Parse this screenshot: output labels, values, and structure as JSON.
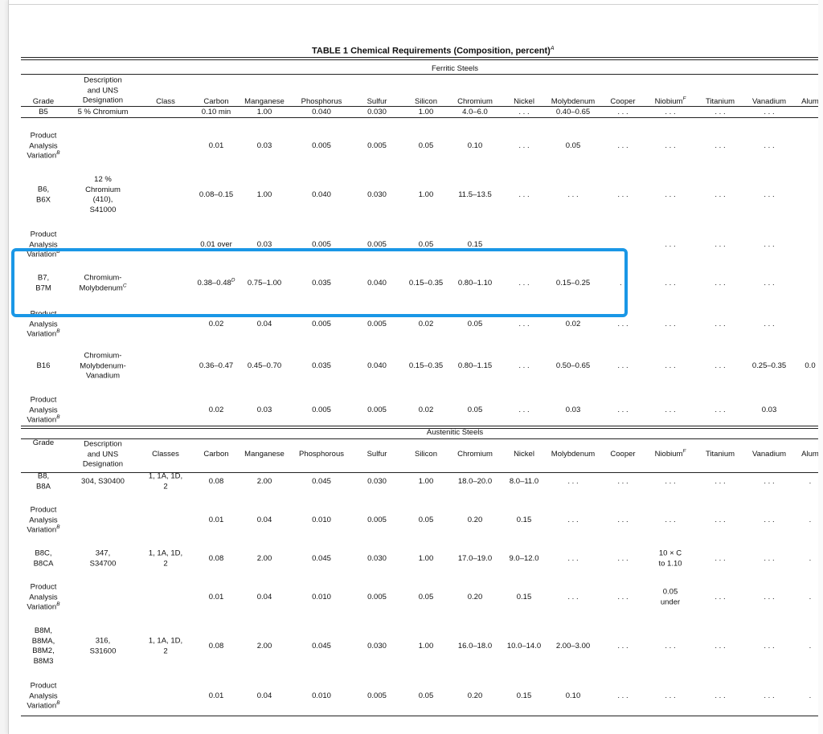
{
  "table": {
    "title": "TABLE 1 Chemical Requirements (Composition, percent)",
    "title_note": "A",
    "ferritic_label": "Ferritic Steels",
    "austenitic_label": "Austenitic Steels",
    "header_ferritic": [
      "Grade",
      "Description\nand UNS\nDesignation",
      "Class",
      "Carbon",
      "Manganese",
      "Phosphorus",
      "Sulfur",
      "Silicon",
      "Chromium",
      "Nickel",
      "Molybdenum",
      "Cooper",
      "Niobium",
      "Titanium",
      "Vanadium",
      "Alum"
    ],
    "header_austenitic": [
      "Grade",
      "Description\nand UNS\nDesignation",
      "Classes",
      "Carbon",
      "Manganese",
      "Phosphorous",
      "Sulfur",
      "Silicon",
      "Chromium",
      "Nickel",
      "Molybdenum",
      "Cooper",
      "Niobium",
      "Titanium",
      "Vanadium",
      "Alum"
    ],
    "niobium_note": "F",
    "variation_note": "B",
    "rows": [
      {
        "grade": "B5",
        "desc": "5 % Chromium",
        "cls": "",
        "values": [
          "0.10 min",
          "1.00",
          "0.040",
          "0.030",
          "1.00",
          "4.0–6.0",
          ". . .",
          "0.40–0.65",
          ". . .",
          ". . .",
          ". . .",
          ". . .",
          ""
        ]
      },
      {
        "grade": "Product\nAnalysis\nVariation",
        "desc": "",
        "cls": "",
        "values": [
          "0.01",
          "0.03",
          "0.005",
          "0.005",
          "0.05",
          "0.10",
          ". . .",
          "0.05",
          ". . .",
          ". . .",
          ". . .",
          ". . .",
          ""
        ]
      },
      {
        "grade": "B6,\nB6X",
        "desc": "12 %\nChromium\n(410),\nS41000",
        "cls": "",
        "values": [
          "0.08–0.15",
          "1.00",
          "0.040",
          "0.030",
          "1.00",
          "11.5–13.5",
          ". . .",
          ". . .",
          ". . .",
          ". . .",
          ". . .",
          ". . .",
          ""
        ]
      },
      {
        "grade": "Product\nAnalysis\nVariation",
        "desc": "",
        "cls": "",
        "values": [
          "0.01 over",
          "0.03",
          "0.005",
          "0.005",
          "0.05",
          "0.15",
          "",
          "",
          "",
          ". . .",
          ". . .",
          ". . .",
          ""
        ]
      },
      {
        "grade": "B7,\nB7M",
        "desc": "Chromium-\nMolybdenum",
        "desc_note": "C",
        "carbon_note": "D",
        "cls": "",
        "values": [
          "0.38–0.48",
          "0.75–1.00",
          "0.035",
          "0.040",
          "0.15–0.35",
          "0.80–1.10",
          ". . .",
          "0.15–0.25",
          ". .",
          ". . .",
          ". . .",
          ". . .",
          ""
        ]
      },
      {
        "grade": "Product\nAnalysis\nVariation",
        "desc": "",
        "cls": "",
        "values": [
          "0.02",
          "0.04",
          "0.005",
          "0.005",
          "0.02",
          "0.05",
          ". . .",
          "0.02",
          ". . .",
          ". . .",
          ". . .",
          ". . .",
          ""
        ]
      },
      {
        "grade": "B16",
        "desc": "Chromium-\nMolybdenum-\nVanadium",
        "cls": "",
        "values": [
          "0.36–0.47",
          "0.45–0.70",
          "0.035",
          "0.040",
          "0.15–0.35",
          "0.80–1.15",
          ". . .",
          "0.50–0.65",
          ". . .",
          ". . .",
          ". . .",
          "0.25–0.35",
          "0.0"
        ]
      },
      {
        "grade": "Product\nAnalysis\nVariation",
        "desc": "",
        "cls": "",
        "values": [
          "0.02",
          "0.03",
          "0.005",
          "0.005",
          "0.02",
          "0.05",
          ". . .",
          "0.03",
          ". . .",
          ". . .",
          ". . .",
          "0.03",
          ""
        ]
      },
      {
        "grade": "B8,\nB8A",
        "desc": "304, S30400",
        "cls": "1, 1A, 1D,\n2",
        "values": [
          "0.08",
          "2.00",
          "0.045",
          "0.030",
          "1.00",
          "18.0–20.0",
          "8.0–11.0",
          ". . .",
          ". . .",
          ". . .",
          ". . .",
          ". . .",
          "."
        ]
      },
      {
        "grade": "Product\nAnalysis\nVariation",
        "desc": "",
        "cls": "",
        "values": [
          "0.01",
          "0.04",
          "0.010",
          "0.005",
          "0.05",
          "0.20",
          "0.15",
          ". . .",
          ". . .",
          ". . .",
          ". . .",
          ". . .",
          "."
        ]
      },
      {
        "grade": "B8C,\nB8CA",
        "desc": "347,\nS34700",
        "cls": "1, 1A, 1D,\n2",
        "values": [
          "0.08",
          "2.00",
          "0.045",
          "0.030",
          "1.00",
          "17.0–19.0",
          "9.0–12.0",
          ". . .",
          ". . .",
          "10 × C\nto 1.10",
          ". . .",
          ". . .",
          "."
        ]
      },
      {
        "grade": "Product\nAnalysis\nVariation",
        "desc": "",
        "cls": "",
        "values": [
          "0.01",
          "0.04",
          "0.010",
          "0.005",
          "0.05",
          "0.20",
          "0.15",
          ". . .",
          ". . .",
          "0.05\nunder",
          ". . .",
          ". . .",
          "."
        ]
      },
      {
        "grade": "B8M,\nB8MA,\nB8M2,\nB8M3",
        "desc": "316,\nS31600",
        "cls": "1, 1A, 1D,\n2",
        "values": [
          "0.08",
          "2.00",
          "0.045",
          "0.030",
          "1.00",
          "16.0–18.0",
          "10.0–14.0",
          "2.00–3.00",
          ". . .",
          ". . .",
          ". . .",
          ". . .",
          "."
        ]
      },
      {
        "grade": "Product\nAnalysis\nVariation",
        "desc": "",
        "cls": "",
        "values": [
          "0.01",
          "0.04",
          "0.010",
          "0.005",
          "0.05",
          "0.20",
          "0.15",
          "0.10",
          ". . .",
          ". . .",
          ". . .",
          ". . .",
          "."
        ]
      }
    ]
  }
}
